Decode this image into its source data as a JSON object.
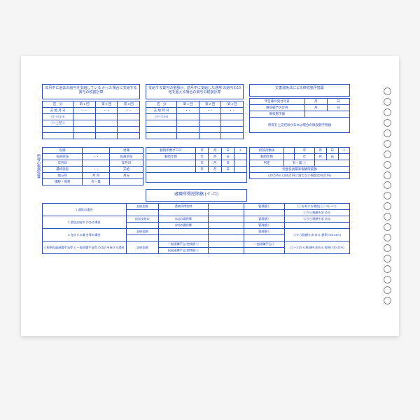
{
  "colors": {
    "ink": "#3050c0",
    "paper": "#ffffff",
    "bg": "#f5f5f5",
    "hole_border": "#888888"
  },
  "header": {
    "box1": "年月中に過去の給与を支給している\nかった場合に支給する賞与の税額計算",
    "box2": "支給する賞与の金額が、前月中に支給した通常\nの給与の10倍を超える場合の賞与の税額計算",
    "box3": "災害減免法による徴収猶予措置"
  },
  "col_headers": [
    "区　分",
    "第 1 回",
    "第 2 回",
    "第 3 回"
  ],
  "left_rows": [
    "支 給 月 日",
    "(①+②)÷6",
    "①×上記③"
  ],
  "right_box": {
    "rows": [
      "申告書の受付月日",
      "徴収猶予許可月",
      "徴収猶予額",
      "所得を上記控除があれば場合の徴収猶予税額"
    ],
    "suffix_m": "月",
    "suffix_d": "日"
  },
  "mid_left": {
    "h": [
      "役職",
      "",
      "退職"
    ],
    "rows": [
      [
        "役員就任",
        "・・",
        "役員退任"
      ],
      [
        "年月日",
        "",
        "年月日"
      ],
      [
        "最終就実",
        "・・",
        "支給"
      ],
      [
        "給与月",
        "月 月",
        "月分"
      ],
      [
        "課税・障害",
        "有・無",
        ""
      ]
    ]
  },
  "mid_center": {
    "rows": [
      [
        "勤続年数グロス",
        "",
        "年",
        "月",
        "日",
        "①"
      ],
      [
        "勤続年数",
        "年",
        "月",
        "日"
      ],
      [
        "",
        "年",
        "月",
        "日"
      ],
      [
        "",
        "年",
        "月",
        "日"
      ]
    ]
  },
  "mid_right": {
    "rows": [
      [
        "控除対象扶",
        "",
        "年",
        "月",
        "日",
        "①"
      ],
      [
        "勤続年数",
        "",
        "年",
        "月",
        "日"
      ],
      [
        "判定",
        "有・無 ①",
        "",
        ""
      ],
      [
        "労金役員最高報酬限度額",
        "(40万円×①(80万円に満たない場合は80万円)"
      ]
    ]
  },
  "big_label": "退職所得控除額\n(イ−ロ)",
  "vlabel": "所得の税額計算",
  "bottom": {
    "col_a": [
      "1 通常の場合",
      "2 追加支給の\nがある場合",
      "3 合計する場\n合等の場合",
      "4 税率役員退職手当等\nと一般退職手当等\nの両方を有する場合"
    ],
    "col_b": [
      "支給金額",
      "追加支給の",
      "支給金額",
      "支給金額"
    ],
    "col_c": [
      "過納所得控除",
      "(ロ)の選択欄",
      "(ロ)の選択欄",
      "一般退職手当\n控除額 ①",
      "役員退職手当\n控除額 ①"
    ],
    "col_d": [
      "管理額①",
      "管理額①",
      "管理額①",
      "管理額①",
      "一般退職手当①"
    ],
    "col_e_hdr": "(①を有する場合)\n(①÷2)～×③",
    "col_e": [
      "②から税額を求\nめる",
      "②から税額を求\nめる",
      "②から税額を求\nめる\n税率(×20.42%)",
      "(②+⑤)から税\n額を求める\n税率(×20.42%)"
    ]
  },
  "feed_holes": 21
}
